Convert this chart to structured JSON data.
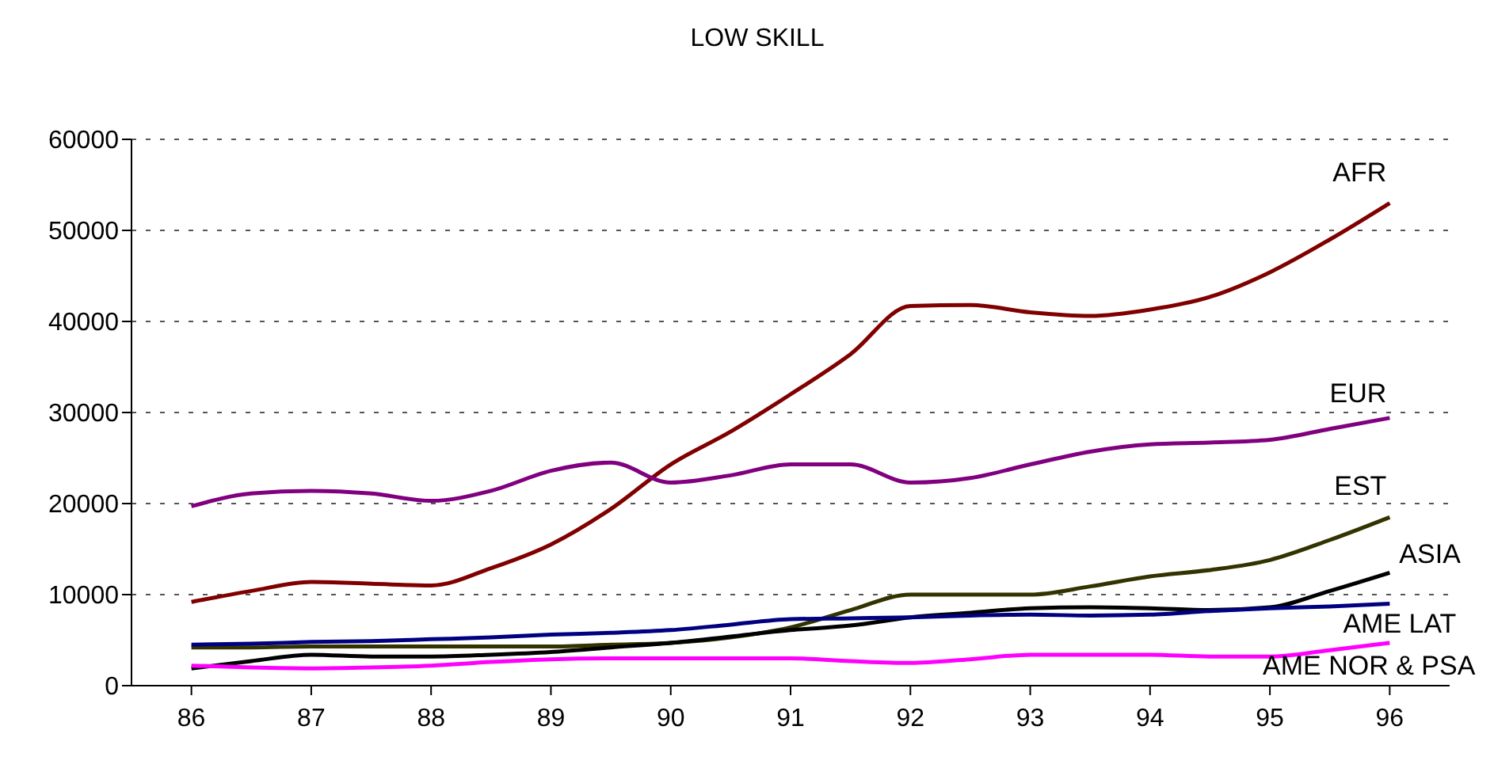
{
  "chart_data": {
    "type": "line",
    "title": "LOW SKILL",
    "x": [
      86,
      86.5,
      87,
      87.5,
      88,
      88.5,
      89,
      89.5,
      90,
      90.5,
      91,
      91.5,
      92,
      92.5,
      93,
      93.5,
      94,
      94.5,
      95,
      95.5,
      96
    ],
    "xlim": [
      85.5,
      96.5
    ],
    "xticks": [
      86,
      87,
      88,
      89,
      90,
      91,
      92,
      93,
      94,
      95,
      96
    ],
    "ylim": [
      0,
      60000
    ],
    "yticks": [
      0,
      10000,
      20000,
      30000,
      40000,
      50000,
      60000
    ],
    "grid": "y",
    "legend": false,
    "marker": "none",
    "line_style": "solid",
    "series": [
      {
        "name": "AFR",
        "color": "#800000",
        "values": [
          9200,
          10400,
          11400,
          11200,
          11000,
          12900,
          15500,
          19400,
          24300,
          27900,
          32000,
          36400,
          41700,
          41800,
          41000,
          40600,
          41300,
          42700,
          45400,
          49000,
          53000
        ]
      },
      {
        "name": "EUR",
        "color": "#800080",
        "values": [
          19700,
          21100,
          21400,
          21100,
          20300,
          21400,
          23600,
          24500,
          22300,
          23100,
          24300,
          24300,
          22300,
          22800,
          24300,
          25700,
          26500,
          26700,
          27000,
          28200,
          29400
        ]
      },
      {
        "name": "EST",
        "color": "#333300",
        "values": [
          4200,
          4200,
          4300,
          4300,
          4300,
          4300,
          4300,
          4500,
          4700,
          5300,
          6400,
          8300,
          10000,
          10000,
          10000,
          10900,
          12000,
          12700,
          13800,
          16000,
          18500
        ]
      },
      {
        "name": "ASIA",
        "color": "#000000",
        "values": [
          1900,
          2700,
          3400,
          3200,
          3200,
          3400,
          3700,
          4200,
          4700,
          5400,
          6100,
          6600,
          7500,
          8000,
          8500,
          8600,
          8500,
          8300,
          8600,
          10400,
          12400
        ]
      },
      {
        "name": "AME LAT",
        "color": "#000080",
        "values": [
          4500,
          4600,
          4800,
          4900,
          5100,
          5300,
          5600,
          5800,
          6100,
          6700,
          7300,
          7400,
          7500,
          7700,
          7800,
          7700,
          7800,
          8200,
          8500,
          8700,
          9000
        ]
      },
      {
        "name": "AME NOR & PSA",
        "color": "#ff00ff",
        "values": [
          2200,
          2000,
          1900,
          2000,
          2200,
          2600,
          2900,
          3000,
          3000,
          3000,
          3000,
          2700,
          2500,
          2900,
          3400,
          3400,
          3400,
          3200,
          3200,
          3900,
          4700
        ]
      }
    ]
  }
}
